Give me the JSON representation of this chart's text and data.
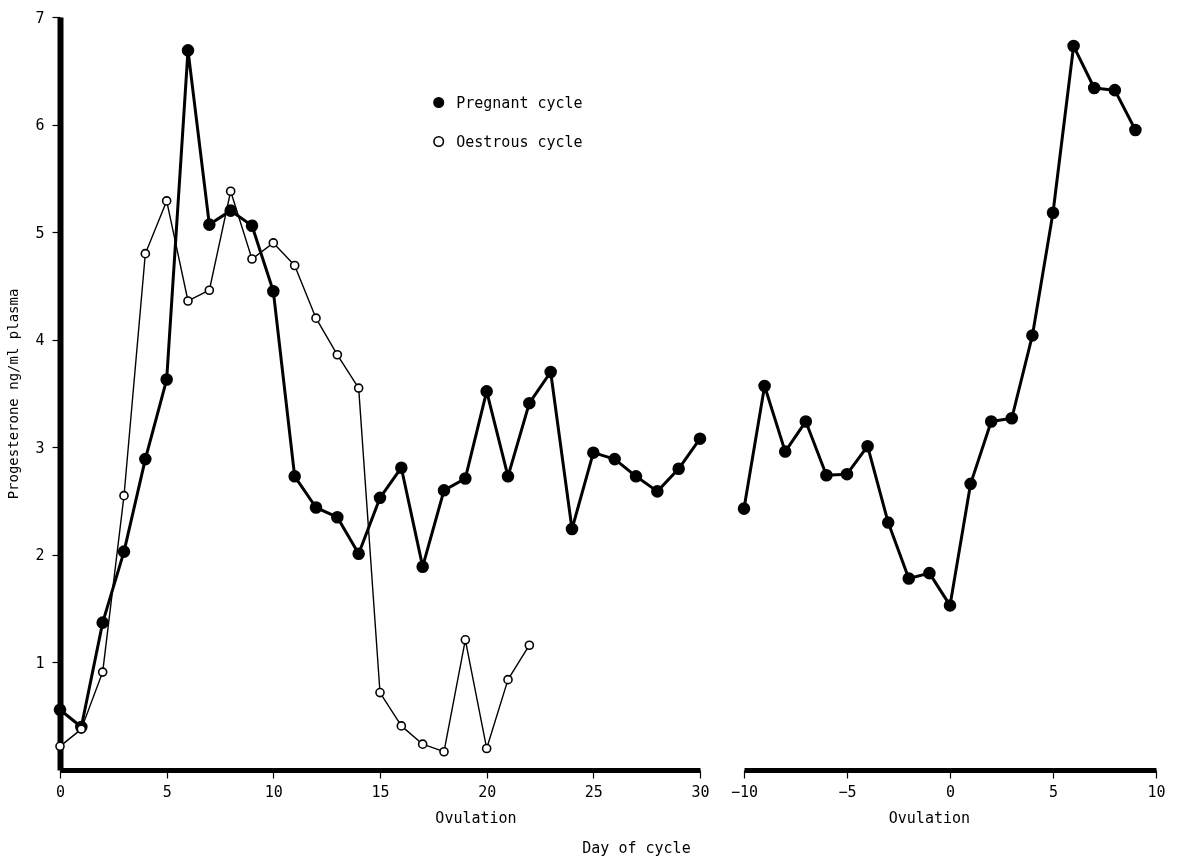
{
  "chart_data": [
    {
      "type": "line",
      "ylabel": "Progesterone ng/ml plasma",
      "xlabel": "Day of cycle",
      "legend": "top",
      "marker": "circle",
      "xlim": [
        0,
        30
      ],
      "xticks": [
        0,
        5,
        10,
        15,
        20,
        25,
        30
      ],
      "ylim": [
        0,
        7
      ],
      "yticks": [
        1,
        2,
        3,
        4,
        5,
        6,
        7
      ],
      "x": [
        0,
        1,
        2,
        3,
        4,
        5,
        6,
        7,
        8,
        9,
        10,
        11,
        12,
        13,
        14,
        15,
        16,
        17,
        18,
        19,
        20,
        21,
        22,
        23,
        24,
        25,
        26,
        27,
        28,
        29,
        30
      ],
      "series": [
        {
          "name": "Pregnant cycle",
          "color": "#000000",
          "values": [
            0.56,
            0.4,
            1.37,
            2.03,
            2.89,
            3.63,
            6.69,
            5.07,
            5.2,
            5.06,
            4.45,
            2.73,
            2.44,
            2.35,
            2.01,
            2.53,
            2.81,
            1.89,
            2.6,
            2.71,
            3.52,
            2.73,
            3.41,
            3.7,
            2.24,
            2.95,
            2.89,
            2.73,
            2.59,
            2.8,
            3.08
          ]
        },
        {
          "name": "Oestrous cycle",
          "color": "#000000",
          "x": [
            0,
            1,
            2,
            3,
            4,
            5,
            6,
            7,
            8,
            9,
            10,
            11,
            12,
            13,
            14,
            15,
            16,
            17,
            18,
            19,
            20,
            21,
            22
          ],
          "values": [
            0.22,
            0.38,
            0.91,
            2.55,
            4.8,
            5.29,
            4.36,
            4.46,
            5.38,
            4.75,
            4.9,
            4.69,
            4.2,
            3.86,
            3.55,
            0.72,
            0.41,
            0.24,
            0.17,
            1.21,
            0.2,
            0.84,
            1.16
          ]
        }
      ],
      "annotations": [
        "Ovulation"
      ]
    },
    {
      "type": "line",
      "marker": "circle",
      "tick_labels": "x",
      "xlim": [
        -10,
        10
      ],
      "xticks": [
        -10,
        -5,
        0,
        5,
        10
      ],
      "ylim": [
        0,
        7
      ],
      "yticks": [
        1,
        2,
        3,
        4,
        5,
        6,
        7
      ],
      "x": [
        -10,
        -9,
        -8,
        -7,
        -6,
        -5,
        -4,
        -3,
        -2,
        -1,
        0,
        1,
        2,
        3,
        4,
        5,
        6,
        7,
        8,
        9
      ],
      "series": [
        {
          "color": "#000000",
          "values": [
            2.43,
            3.57,
            2.96,
            3.24,
            2.74,
            2.75,
            3.01,
            2.3,
            1.78,
            1.83,
            1.53,
            2.66,
            3.24,
            3.27,
            4.04,
            5.18,
            6.73,
            6.34,
            6.32,
            5.95
          ]
        }
      ],
      "annotations": [
        "Ovulation"
      ]
    }
  ]
}
